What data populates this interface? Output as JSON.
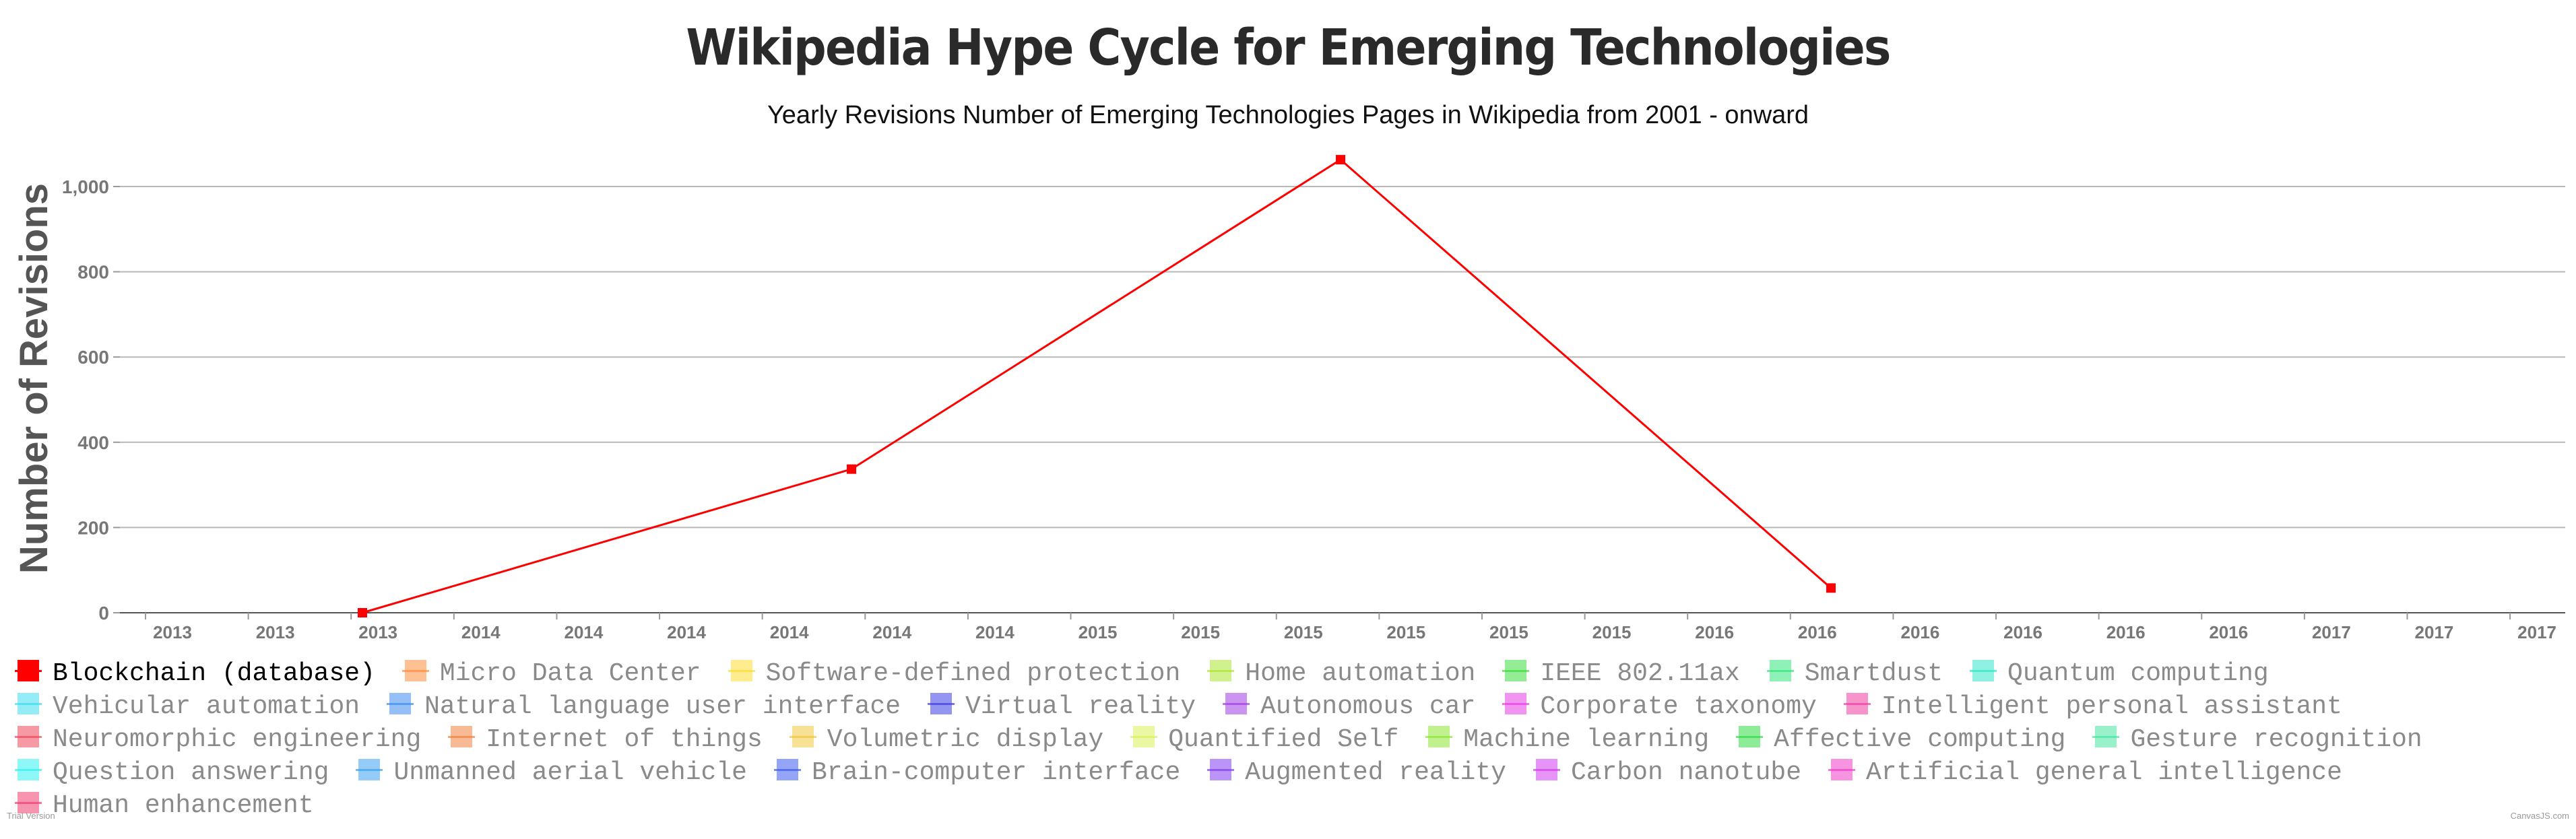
{
  "chart_data": {
    "type": "line",
    "title": "Wikipedia Hype Cycle for Emerging Technologies",
    "subtitle": "Yearly Revisions Number of Emerging Technologies Pages in Wikipedia from 2001 - onward",
    "ylabel": "Number of Revisions",
    "xlabel": "",
    "ylim": [
      0,
      1000
    ],
    "yticks": [
      0,
      200,
      400,
      600,
      800,
      1000
    ],
    "ytick_labels": [
      "0",
      "200",
      "400",
      "600",
      "800",
      "1,000"
    ],
    "xlim": [
      "2013-01-01",
      "2017-12-31"
    ],
    "xtick_labels": [
      "2013",
      "2013",
      "2013",
      "2014",
      "2014",
      "2014",
      "2014",
      "2014",
      "2014",
      "2015",
      "2015",
      "2015",
      "2015",
      "2015",
      "2015",
      "2016",
      "2016",
      "2016",
      "2016",
      "2016",
      "2016",
      "2017",
      "2017",
      "2017"
    ],
    "grid": true,
    "legend_position": "bottom",
    "series": [
      {
        "name": "Blockchain (database)",
        "color": "#ff0000",
        "x": [
          "2013-07-01",
          "2014-07-01",
          "2015-07-01",
          "2016-07-01"
        ],
        "y": [
          0,
          337,
          1063,
          58
        ]
      }
    ],
    "legend": [
      {
        "name": "Blockchain (database)",
        "color": "#ff0000",
        "active": true
      },
      {
        "name": "Micro Data Center",
        "color": "#ff8c3c"
      },
      {
        "name": "Software-defined protection",
        "color": "#ffdc32"
      },
      {
        "name": "Home automation",
        "color": "#aae632"
      },
      {
        "name": "IEEE 802.11ax",
        "color": "#3cdc3c"
      },
      {
        "name": "Smartdust",
        "color": "#32e67a"
      },
      {
        "name": "Quantum computing",
        "color": "#32e6c8"
      },
      {
        "name": "Vehicular automation",
        "color": "#3cdcf0"
      },
      {
        "name": "Natural language user interface",
        "color": "#3c8cf0"
      },
      {
        "name": "Virtual reality",
        "color": "#3c3ce6"
      },
      {
        "name": "Autonomous car",
        "color": "#a03ce6"
      },
      {
        "name": "Corporate taxonomy",
        "color": "#e63ce6"
      },
      {
        "name": "Intelligent personal assistant",
        "color": "#f03ca0"
      },
      {
        "name": "Neuromorphic engineering",
        "color": "#f0465a"
      },
      {
        "name": "Internet of things",
        "color": "#f0823c"
      },
      {
        "name": "Volumetric display",
        "color": "#f0c83c"
      },
      {
        "name": "Quantified Self",
        "color": "#dcf05a"
      },
      {
        "name": "Machine learning",
        "color": "#8ce632"
      },
      {
        "name": "Affective computing",
        "color": "#32dc46"
      },
      {
        "name": "Gesture recognition",
        "color": "#46e6a0"
      },
      {
        "name": "Question answering",
        "color": "#32f0f0"
      },
      {
        "name": "Unmanned aerial vehicle",
        "color": "#3ca0f0"
      },
      {
        "name": "Brain-computer interface",
        "color": "#3c5af0"
      },
      {
        "name": "Augmented reality",
        "color": "#823cf0"
      },
      {
        "name": "Carbon nanotube",
        "color": "#d23cf0"
      },
      {
        "name": "Artificial general intelligence",
        "color": "#f03cc8"
      },
      {
        "name": "Human enhancement",
        "color": "#f03c6e"
      }
    ]
  },
  "footer": {
    "trial_note": "Trial Version",
    "credit": "CanvasJS.com"
  }
}
